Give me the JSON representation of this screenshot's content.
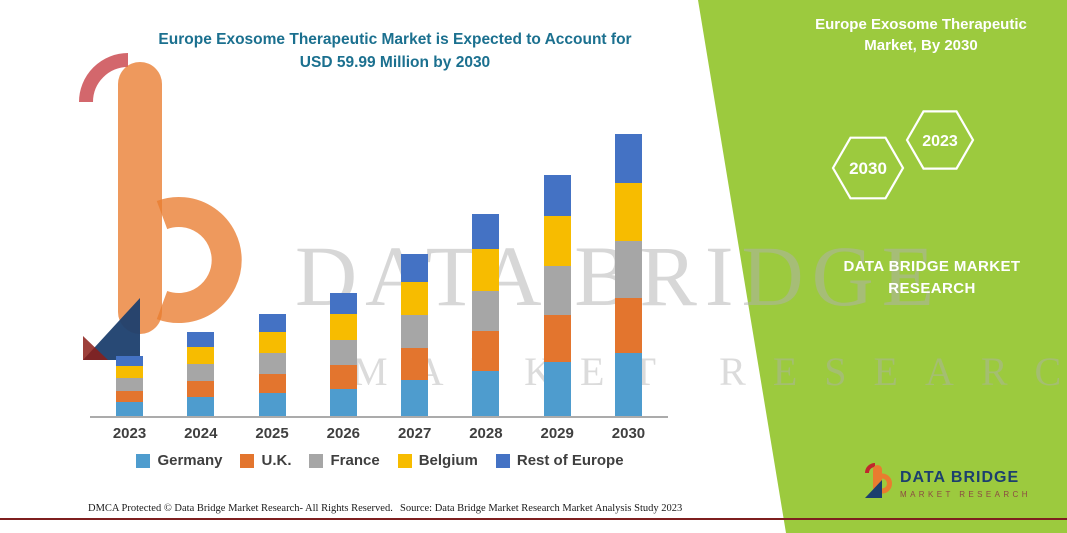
{
  "colors": {
    "green_panel": "#9CCA3E",
    "title_teal": "#1B708F",
    "footer_line": "#7E1F1F"
  },
  "title": {
    "line1": "Europe Exosome Therapeutic Market is Expected to Account for",
    "line2": "USD 59.99 Million by 2030"
  },
  "right_panel": {
    "title": "Europe Exosome Therapeutic Market, By 2030",
    "hex_left": "2030",
    "hex_right": "2023",
    "brand_line1": "DATA BRIDGE MARKET",
    "brand_line2": "RESEARCH"
  },
  "watermark": {
    "line1": "DATA BRIDGE",
    "line2": "MARKET RESEARCH"
  },
  "footer_logo": {
    "name": "DATA BRIDGE",
    "sub": "MARKET RESEARCH"
  },
  "footer": {
    "dmca": "DMCA Protected © Data Bridge Market Research-  All Rights Reserved.",
    "source": "Source: Data Bridge Market Research  Market Analysis Study 2023"
  },
  "chart_data": {
    "type": "bar",
    "stacked": true,
    "title": "Europe Exosome Therapeutic Market is Expected to Account for USD 59.99 Million by 2030",
    "unit": "USD Million",
    "categories": [
      "2023",
      "2024",
      "2025",
      "2026",
      "2027",
      "2028",
      "2029",
      "2030"
    ],
    "series": [
      {
        "name": "Germany",
        "color": "#4E9CCE",
        "values": [
          2.9,
          4.0,
          4.8,
          5.8,
          7.7,
          9.6,
          11.5,
          13.39
        ]
      },
      {
        "name": "U.K.",
        "color": "#E3752E",
        "values": [
          2.5,
          3.5,
          4.2,
          5.1,
          6.7,
          8.4,
          10.0,
          11.7
        ]
      },
      {
        "name": "France",
        "color": "#A6A6A6",
        "values": [
          2.6,
          3.6,
          4.4,
          5.3,
          7.0,
          8.7,
          10.4,
          12.2
        ]
      },
      {
        "name": "Belgium",
        "color": "#F7BC00",
        "values": [
          2.6,
          3.7,
          4.5,
          5.4,
          7.1,
          8.9,
          10.6,
          12.4
        ]
      },
      {
        "name": "Rest of Europe",
        "color": "#4472C4",
        "values": [
          2.2,
          3.1,
          3.7,
          4.5,
          5.9,
          7.4,
          8.8,
          10.3
        ]
      }
    ],
    "totals": [
      12.8,
      17.9,
      21.6,
      26.1,
      34.4,
      43.0,
      51.3,
      59.99
    ],
    "ylim": [
      0,
      60
    ],
    "y_axis_visible": false,
    "grid": false,
    "legend_position": "bottom"
  }
}
